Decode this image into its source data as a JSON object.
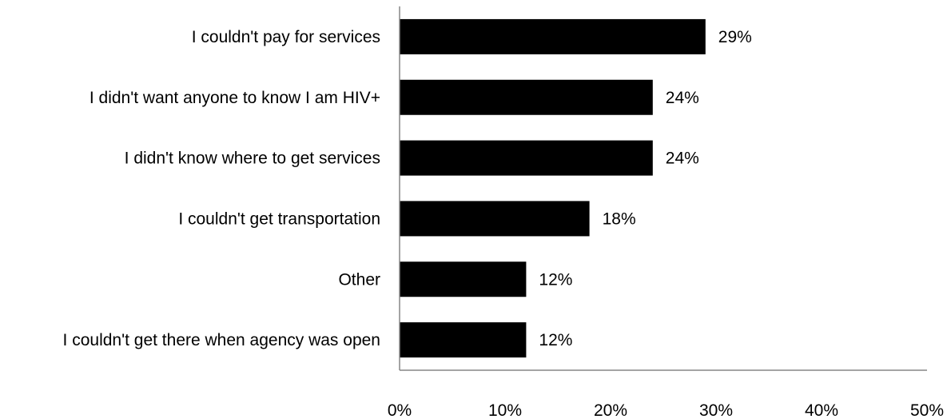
{
  "chart_data": {
    "type": "bar",
    "orientation": "horizontal",
    "title": "",
    "xlabel": "",
    "ylabel": "",
    "categories": [
      "I couldn't pay for services",
      "I didn't want anyone to know I am HIV+",
      "I didn't know where to get services",
      "I couldn't get transportation",
      "Other",
      "I couldn't get there when agency was open"
    ],
    "values": [
      29,
      24,
      24,
      18,
      12,
      12
    ],
    "data_labels": [
      "29%",
      "24%",
      "24%",
      "18%",
      "12%",
      "12%"
    ],
    "xlim": [
      0,
      50
    ],
    "x_ticks": [
      0,
      10,
      20,
      30,
      40,
      50
    ],
    "x_tick_labels": [
      "0%",
      "10%",
      "20%",
      "30%",
      "40%",
      "50%"
    ],
    "grid": false,
    "legend": "none",
    "colors": {
      "bar": "#000000",
      "axis": "#868686",
      "text": "#000000"
    }
  }
}
